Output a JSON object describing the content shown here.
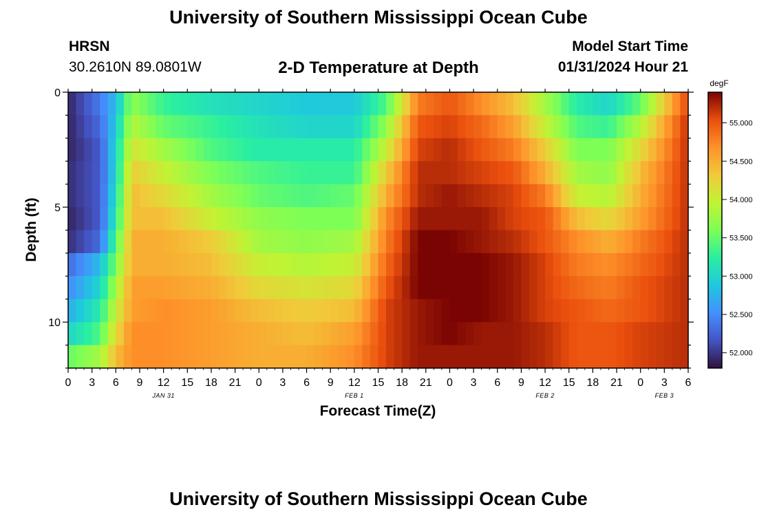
{
  "page": {
    "title": "University of Southern Mississippi Ocean Cube",
    "footer_title": "University of Southern Mississippi Ocean Cube",
    "station": "HRSN",
    "coordinates": "30.2610N  89.0801W",
    "subtitle": "2-D Temperature at Depth",
    "model_start_label": "Model Start Time",
    "model_start_value": "01/31/2024 Hour 21"
  },
  "chart_data": {
    "type": "heatmap",
    "title": "2-D Temperature at Depth",
    "xlabel": "Forecast Time(Z)",
    "ylabel": "Depth (ft)",
    "colorbar_unit": "degF",
    "x_tick_labels": [
      "0",
      "3",
      "6",
      "9",
      "12",
      "15",
      "18",
      "21",
      "0",
      "3",
      "6",
      "9",
      "12",
      "15",
      "18",
      "21",
      "0",
      "3",
      "6",
      "9",
      "12",
      "15",
      "18",
      "21",
      "0",
      "3",
      "6"
    ],
    "x_hours": [
      0,
      3,
      6,
      9,
      12,
      15,
      18,
      21,
      24,
      27,
      30,
      33,
      36,
      39,
      42,
      45,
      48,
      51,
      54,
      57,
      60,
      63,
      66,
      69,
      72,
      75,
      78
    ],
    "x_range_hours": [
      0,
      78
    ],
    "date_labels": [
      {
        "label": "JAN 31",
        "hour": 12
      },
      {
        "label": "FEB 1",
        "hour": 36
      },
      {
        "label": "FEB 2",
        "hour": 60
      },
      {
        "label": "FEB 3",
        "hour": 75
      }
    ],
    "y_ticks": [
      0,
      5,
      10
    ],
    "y_tick_labels": [
      "0",
      "5",
      "10"
    ],
    "y_range_ft": [
      0,
      12
    ],
    "depth_layers_ft": [
      0.5,
      1.5,
      2.5,
      3.5,
      4.5,
      5.5,
      6.5,
      7.5,
      8.5,
      9.5,
      10.5,
      11.5
    ],
    "colorbar_range": [
      51.8,
      55.4
    ],
    "colorbar_ticks": [
      52.0,
      52.5,
      53.0,
      53.5,
      54.0,
      54.5,
      55.0
    ],
    "colorbar_tick_labels": [
      "52.000",
      "52.500",
      "53.000",
      "53.500",
      "54.000",
      "54.500",
      "55.000"
    ],
    "profile_hours": [
      0,
      4,
      6,
      8,
      12,
      18,
      24,
      30,
      36,
      40,
      44,
      48,
      52,
      56,
      60,
      64,
      68,
      72,
      78
    ],
    "values_degF": [
      [
        51.9,
        52.4,
        52.8,
        53.7,
        53.3,
        53.1,
        53.0,
        52.9,
        52.9,
        53.4,
        54.8,
        55.0,
        54.7,
        54.4,
        53.8,
        53.2,
        53.0,
        53.5,
        55.1
      ],
      [
        51.9,
        52.3,
        52.9,
        53.9,
        53.5,
        53.3,
        53.1,
        53.0,
        53.0,
        53.7,
        55.0,
        55.1,
        54.9,
        54.6,
        54.0,
        53.4,
        53.3,
        53.9,
        55.2
      ],
      [
        51.9,
        52.2,
        53.0,
        54.1,
        53.8,
        53.4,
        53.2,
        53.2,
        53.2,
        54.0,
        55.1,
        55.2,
        55.0,
        54.8,
        54.3,
        53.6,
        53.6,
        54.2,
        55.2
      ],
      [
        51.95,
        52.2,
        53.0,
        54.3,
        54.0,
        53.6,
        53.4,
        53.3,
        53.3,
        54.3,
        55.2,
        55.2,
        55.1,
        55.0,
        54.5,
        53.8,
        53.7,
        54.4,
        55.2
      ],
      [
        51.95,
        52.2,
        53.1,
        54.4,
        54.2,
        53.8,
        53.5,
        53.4,
        53.5,
        54.5,
        55.2,
        55.3,
        55.2,
        55.1,
        54.8,
        54.0,
        53.9,
        54.5,
        55.2
      ],
      [
        51.9,
        52.2,
        53.2,
        54.4,
        54.4,
        54.0,
        53.7,
        53.6,
        53.6,
        54.7,
        55.3,
        55.3,
        55.3,
        55.1,
        55.0,
        54.4,
        54.2,
        54.6,
        55.2
      ],
      [
        51.95,
        52.3,
        53.4,
        54.5,
        54.5,
        54.3,
        53.8,
        53.7,
        53.8,
        54.8,
        55.4,
        55.4,
        55.3,
        55.2,
        55.0,
        54.7,
        54.5,
        54.8,
        55.2
      ],
      [
        52.3,
        52.8,
        53.6,
        54.5,
        54.5,
        54.4,
        54.0,
        53.9,
        54.0,
        54.9,
        55.4,
        55.4,
        55.4,
        55.3,
        55.1,
        54.8,
        54.7,
        54.9,
        55.2
      ],
      [
        52.5,
        53.0,
        53.8,
        54.6,
        54.6,
        54.5,
        54.2,
        54.1,
        54.2,
        55.0,
        55.4,
        55.4,
        55.4,
        55.3,
        55.1,
        54.9,
        54.8,
        55.0,
        55.2
      ],
      [
        52.7,
        53.2,
        54.0,
        54.6,
        54.7,
        54.6,
        54.4,
        54.3,
        54.4,
        55.1,
        55.3,
        55.4,
        55.4,
        55.3,
        55.1,
        55.0,
        54.9,
        55.0,
        55.2
      ],
      [
        53.0,
        53.4,
        54.2,
        54.7,
        54.7,
        54.6,
        54.5,
        54.4,
        54.6,
        55.1,
        55.3,
        55.4,
        55.3,
        55.3,
        55.2,
        55.0,
        55.0,
        55.1,
        55.2
      ],
      [
        53.5,
        53.8,
        54.4,
        54.7,
        54.7,
        54.6,
        54.5,
        54.5,
        54.7,
        55.1,
        55.3,
        55.3,
        55.3,
        55.3,
        55.2,
        55.0,
        55.0,
        55.1,
        55.2
      ]
    ]
  }
}
